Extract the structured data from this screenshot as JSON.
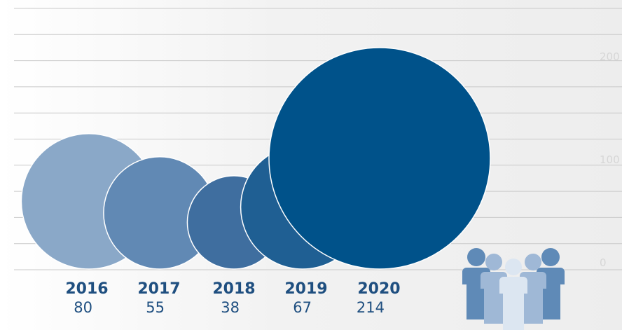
{
  "chart_data": {
    "type": "bubble",
    "categories": [
      "2016",
      "2017",
      "2018",
      "2019",
      "2020"
    ],
    "values": [
      80,
      55,
      38,
      67,
      214
    ],
    "value_labels": [
      "80",
      "55",
      "38",
      "67",
      "214"
    ],
    "y_ticks": [
      "200",
      "100",
      "0"
    ],
    "y_tick_values": [
      200,
      100,
      0
    ],
    "grid": true,
    "colors": [
      "#8aa8c8",
      "#6189b4",
      "#3f6e9f",
      "#1f5f93",
      "#00528a"
    ]
  },
  "icon": {
    "name": "people-group-icon",
    "colors": [
      "#5f8ab7",
      "#9fb8d6",
      "#dce6f1"
    ]
  }
}
